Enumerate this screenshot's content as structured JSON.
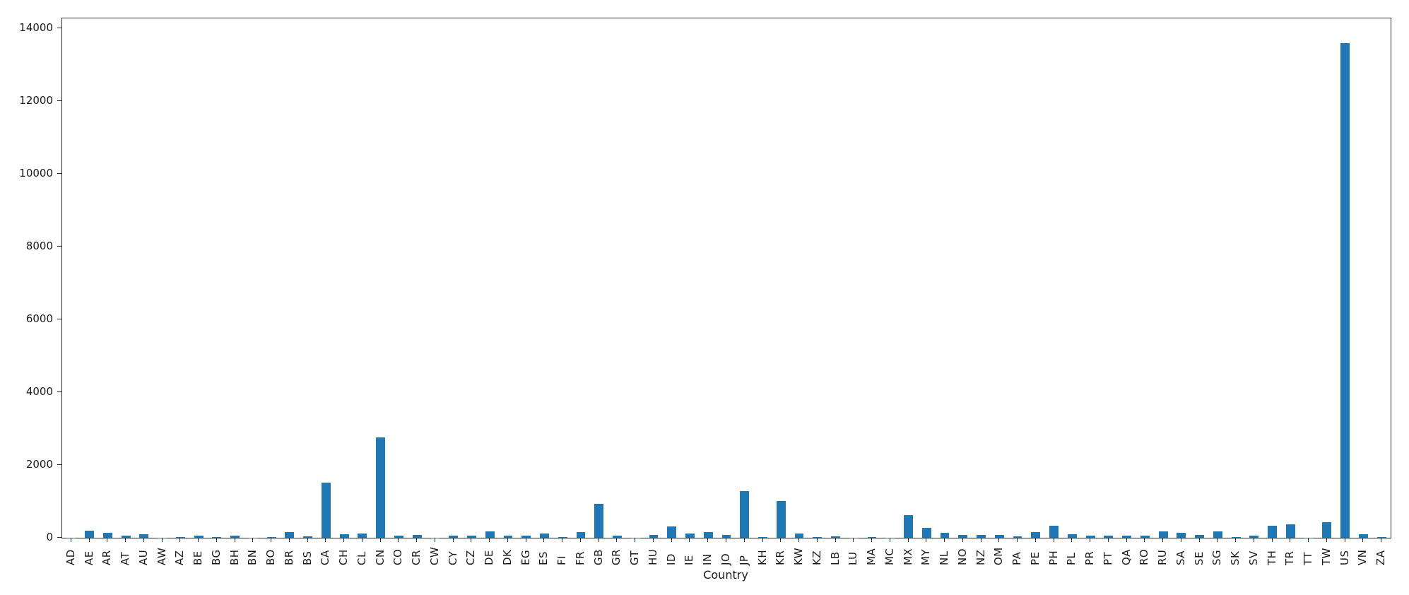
{
  "chart_data": {
    "type": "bar",
    "title": "",
    "xlabel": "Country",
    "ylabel": "",
    "bar_color": "#1f77b4",
    "grid": false,
    "legend": "none",
    "ylim": [
      0,
      14272
    ],
    "yticks": [
      0,
      2000,
      4000,
      6000,
      8000,
      10000,
      12000,
      14000
    ],
    "categories": [
      "AD",
      "AE",
      "AR",
      "AT",
      "AU",
      "AW",
      "AZ",
      "BE",
      "BG",
      "BH",
      "BN",
      "BO",
      "BR",
      "BS",
      "CA",
      "CH",
      "CL",
      "CN",
      "CO",
      "CR",
      "CW",
      "CY",
      "CZ",
      "DE",
      "DK",
      "EG",
      "ES",
      "FI",
      "FR",
      "GB",
      "GR",
      "GT",
      "HU",
      "ID",
      "IE",
      "IN",
      "JO",
      "JP",
      "KH",
      "KR",
      "KW",
      "KZ",
      "LB",
      "LU",
      "MA",
      "MC",
      "MX",
      "MY",
      "NL",
      "NO",
      "NZ",
      "OM",
      "PA",
      "PE",
      "PH",
      "PL",
      "PR",
      "PT",
      "QA",
      "RO",
      "RU",
      "SA",
      "SE",
      "SG",
      "SK",
      "SV",
      "TH",
      "TR",
      "TT",
      "TW",
      "US",
      "VN",
      "ZA"
    ],
    "values": [
      8,
      190,
      130,
      55,
      90,
      8,
      15,
      60,
      20,
      60,
      8,
      15,
      150,
      40,
      1510,
      95,
      110,
      2760,
      60,
      70,
      10,
      50,
      60,
      180,
      55,
      65,
      125,
      25,
      160,
      935,
      60,
      10,
      70,
      310,
      115,
      150,
      70,
      1280,
      15,
      1005,
      115,
      20,
      45,
      10,
      15,
      8,
      630,
      270,
      130,
      85,
      85,
      80,
      30,
      155,
      340,
      95,
      55,
      50,
      55,
      60,
      170,
      130,
      85,
      180,
      20,
      60,
      335,
      365,
      8,
      430,
      13590,
      90,
      15
    ]
  }
}
